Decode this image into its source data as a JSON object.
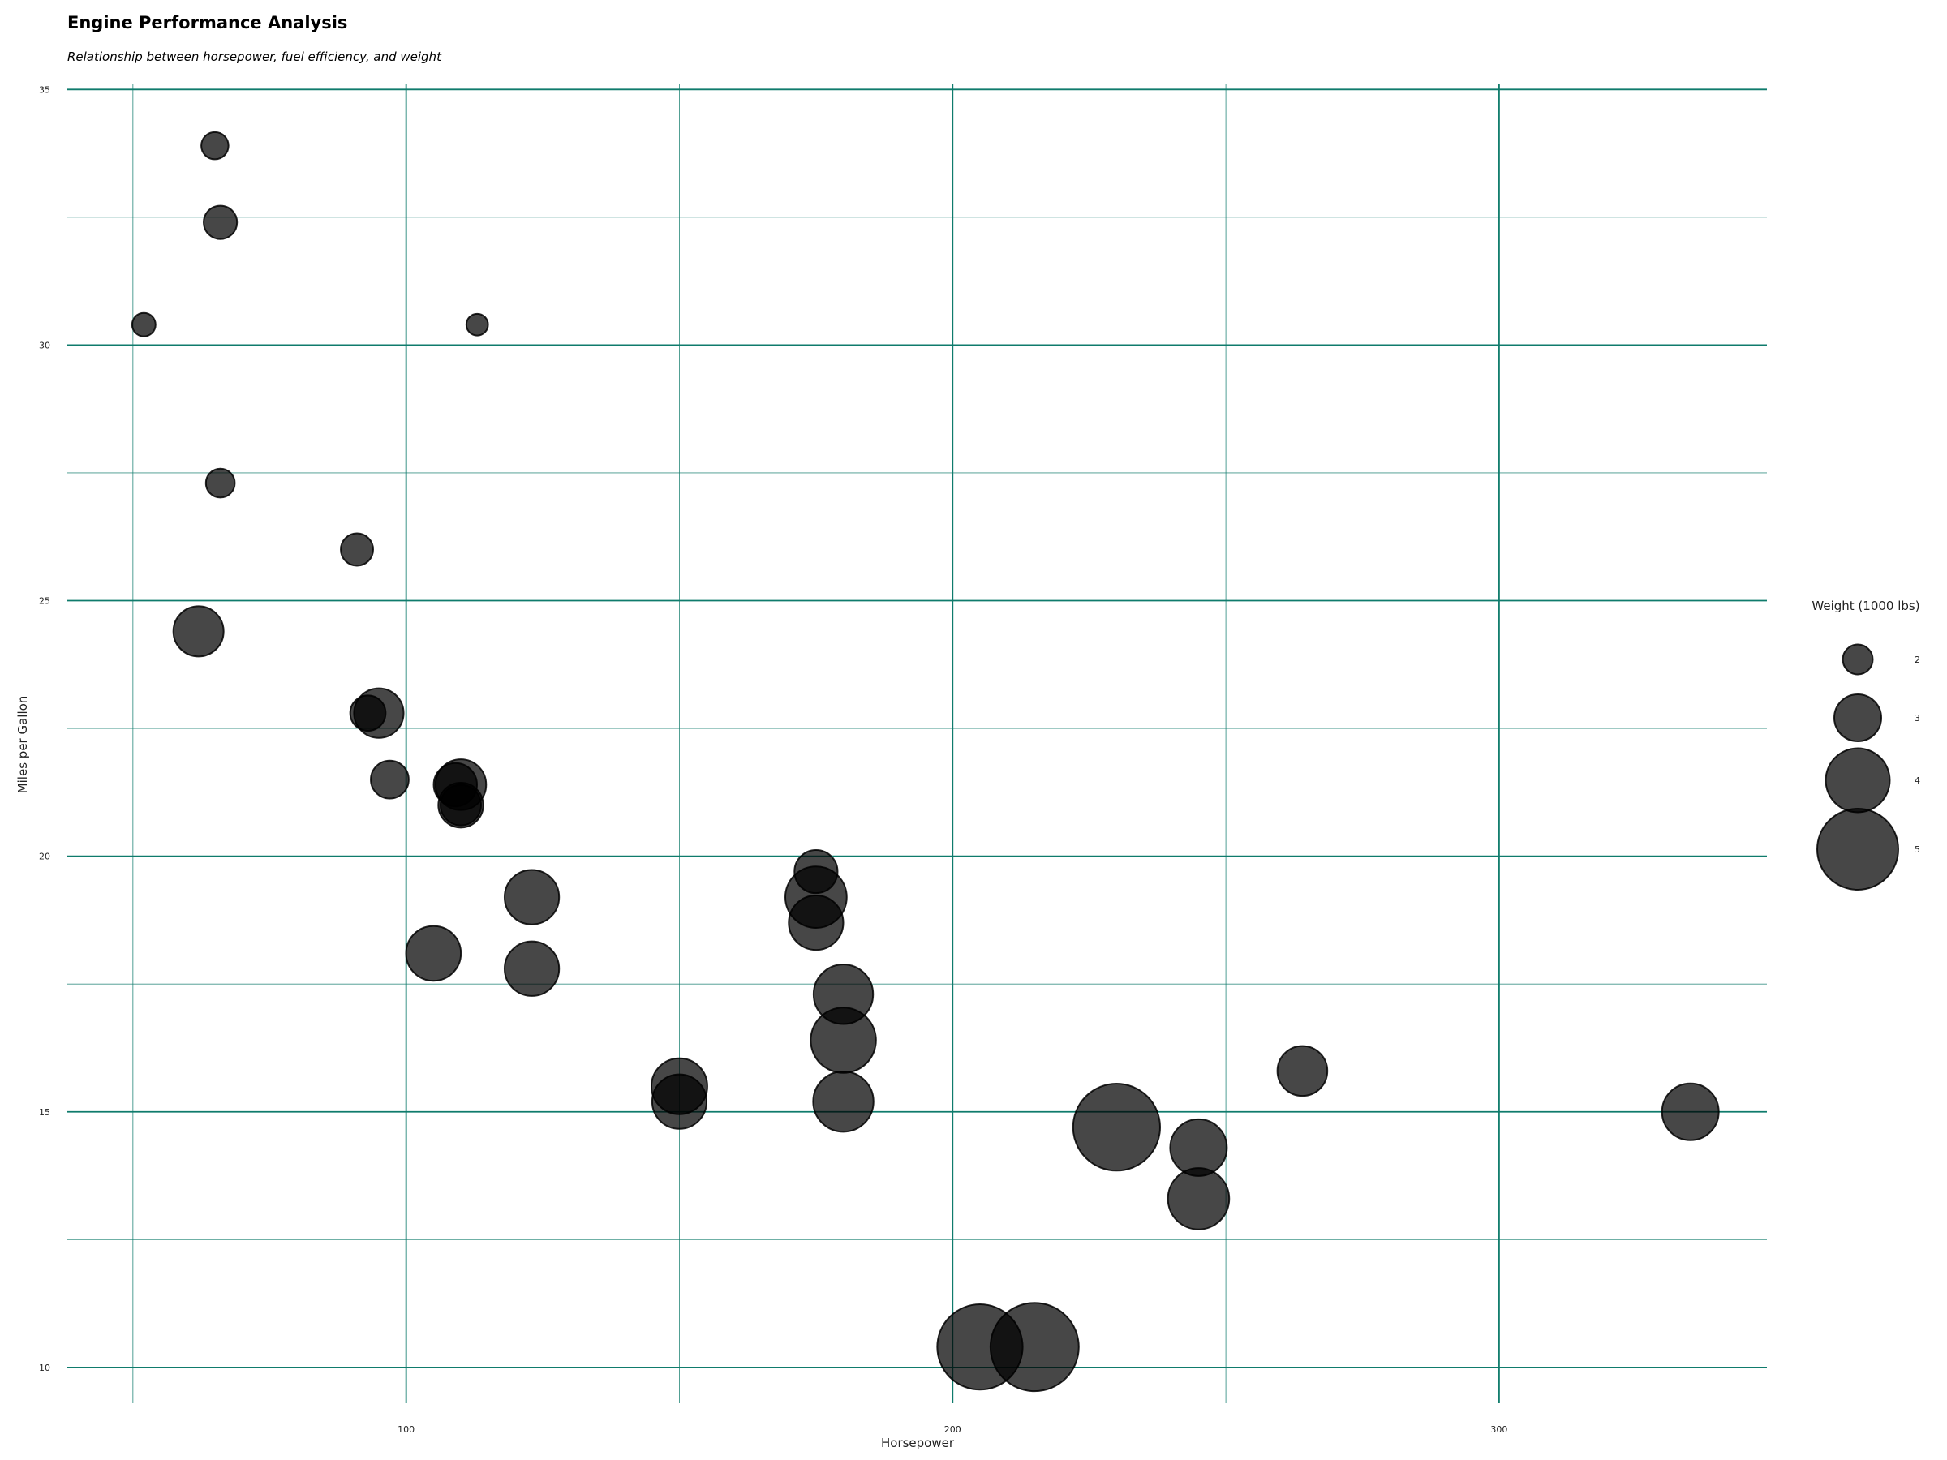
{
  "chart_data": {
    "type": "scatter",
    "title": "Engine Performance Analysis",
    "subtitle": "Relationship between horsepower, fuel efficiency, and weight",
    "xlabel": "Horsepower",
    "ylabel": "Miles per Gallon",
    "xlim": [
      38,
      349
    ],
    "ylim": [
      9.3,
      35.1
    ],
    "xticks": [
      100,
      200,
      300
    ],
    "yticks": [
      10,
      15,
      20,
      25,
      30,
      35
    ],
    "grid": true,
    "grid_color": "#0f7b6c",
    "point_color": "#000000",
    "size_variable": "wt",
    "legend": {
      "title": "Weight (1000 lbs)",
      "placement": "right",
      "entries": [
        {
          "label": "2",
          "value": 2
        },
        {
          "label": "3",
          "value": 3
        },
        {
          "label": "4",
          "value": 4
        },
        {
          "label": "5",
          "value": 5
        }
      ]
    },
    "points": [
      {
        "hp": 110,
        "mpg": 21.0,
        "wt": 2.62
      },
      {
        "hp": 110,
        "mpg": 21.0,
        "wt": 2.875
      },
      {
        "hp": 93,
        "mpg": 22.8,
        "wt": 2.32
      },
      {
        "hp": 110,
        "mpg": 21.4,
        "wt": 3.215
      },
      {
        "hp": 175,
        "mpg": 18.7,
        "wt": 3.44
      },
      {
        "hp": 105,
        "mpg": 18.1,
        "wt": 3.46
      },
      {
        "hp": 245,
        "mpg": 14.3,
        "wt": 3.57
      },
      {
        "hp": 62,
        "mpg": 24.4,
        "wt": 3.19
      },
      {
        "hp": 95,
        "mpg": 22.8,
        "wt": 3.15
      },
      {
        "hp": 123,
        "mpg": 19.2,
        "wt": 3.44
      },
      {
        "hp": 123,
        "mpg": 17.8,
        "wt": 3.44
      },
      {
        "hp": 180,
        "mpg": 16.4,
        "wt": 4.07
      },
      {
        "hp": 180,
        "mpg": 17.3,
        "wt": 3.73
      },
      {
        "hp": 180,
        "mpg": 15.2,
        "wt": 3.78
      },
      {
        "hp": 205,
        "mpg": 10.4,
        "wt": 5.25
      },
      {
        "hp": 215,
        "mpg": 10.4,
        "wt": 5.424
      },
      {
        "hp": 230,
        "mpg": 14.7,
        "wt": 5.345
      },
      {
        "hp": 66,
        "mpg": 32.4,
        "wt": 2.2
      },
      {
        "hp": 52,
        "mpg": 30.4,
        "wt": 1.615
      },
      {
        "hp": 65,
        "mpg": 33.9,
        "wt": 1.835
      },
      {
        "hp": 97,
        "mpg": 21.5,
        "wt": 2.465
      },
      {
        "hp": 150,
        "mpg": 15.5,
        "wt": 3.52
      },
      {
        "hp": 150,
        "mpg": 15.2,
        "wt": 3.435
      },
      {
        "hp": 245,
        "mpg": 13.3,
        "wt": 3.84
      },
      {
        "hp": 175,
        "mpg": 19.2,
        "wt": 3.845
      },
      {
        "hp": 66,
        "mpg": 27.3,
        "wt": 1.935
      },
      {
        "hp": 91,
        "mpg": 26.0,
        "wt": 2.14
      },
      {
        "hp": 113,
        "mpg": 30.4,
        "wt": 1.513
      },
      {
        "hp": 264,
        "mpg": 15.8,
        "wt": 3.17
      },
      {
        "hp": 175,
        "mpg": 19.7,
        "wt": 2.77
      },
      {
        "hp": 335,
        "mpg": 15.0,
        "wt": 3.57
      },
      {
        "hp": 109,
        "mpg": 21.4,
        "wt": 2.78
      }
    ]
  }
}
